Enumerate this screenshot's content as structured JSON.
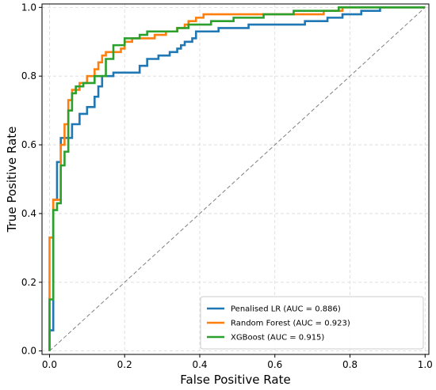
{
  "chart_data": {
    "type": "line",
    "xlabel": "False Positive Rate",
    "ylabel": "True Positive Rate",
    "xlim": [
      -0.02,
      1.01
    ],
    "ylim": [
      -0.01,
      1.01
    ],
    "x_ticks": [
      0.0,
      0.2,
      0.4,
      0.6,
      0.8,
      1.0
    ],
    "y_ticks": [
      0.0,
      0.2,
      0.4,
      0.6,
      0.8,
      1.0
    ],
    "grid": true,
    "legend_position": "bottom-right",
    "diagonal": {
      "color": "#808080",
      "points": [
        [
          0,
          0
        ],
        [
          1,
          1
        ]
      ]
    },
    "series": [
      {
        "name": "Penalised LR (AUC = 0.886)",
        "color": "#1f77b4",
        "points": [
          [
            0,
            0
          ],
          [
            0,
            0.06
          ],
          [
            0.01,
            0.06
          ],
          [
            0.01,
            0.44
          ],
          [
            0.02,
            0.44
          ],
          [
            0.02,
            0.55
          ],
          [
            0.03,
            0.55
          ],
          [
            0.03,
            0.62
          ],
          [
            0.06,
            0.62
          ],
          [
            0.06,
            0.66
          ],
          [
            0.08,
            0.66
          ],
          [
            0.08,
            0.69
          ],
          [
            0.1,
            0.69
          ],
          [
            0.1,
            0.71
          ],
          [
            0.12,
            0.71
          ],
          [
            0.12,
            0.74
          ],
          [
            0.13,
            0.74
          ],
          [
            0.13,
            0.77
          ],
          [
            0.14,
            0.77
          ],
          [
            0.14,
            0.8
          ],
          [
            0.17,
            0.8
          ],
          [
            0.17,
            0.81
          ],
          [
            0.24,
            0.81
          ],
          [
            0.24,
            0.83
          ],
          [
            0.26,
            0.83
          ],
          [
            0.26,
            0.85
          ],
          [
            0.29,
            0.85
          ],
          [
            0.29,
            0.86
          ],
          [
            0.32,
            0.86
          ],
          [
            0.32,
            0.87
          ],
          [
            0.34,
            0.87
          ],
          [
            0.34,
            0.88
          ],
          [
            0.35,
            0.88
          ],
          [
            0.35,
            0.89
          ],
          [
            0.36,
            0.89
          ],
          [
            0.36,
            0.9
          ],
          [
            0.38,
            0.9
          ],
          [
            0.38,
            0.91
          ],
          [
            0.39,
            0.91
          ],
          [
            0.39,
            0.93
          ],
          [
            0.45,
            0.93
          ],
          [
            0.45,
            0.94
          ],
          [
            0.53,
            0.94
          ],
          [
            0.53,
            0.95
          ],
          [
            0.68,
            0.95
          ],
          [
            0.68,
            0.96
          ],
          [
            0.74,
            0.96
          ],
          [
            0.74,
            0.97
          ],
          [
            0.78,
            0.97
          ],
          [
            0.78,
            0.98
          ],
          [
            0.83,
            0.98
          ],
          [
            0.83,
            0.99
          ],
          [
            0.88,
            0.99
          ],
          [
            0.88,
            1.0
          ],
          [
            1,
            1
          ]
        ]
      },
      {
        "name": "Random Forest (AUC = 0.923)",
        "color": "#ff7f0e",
        "points": [
          [
            0,
            0
          ],
          [
            0,
            0.33
          ],
          [
            0.01,
            0.33
          ],
          [
            0.01,
            0.44
          ],
          [
            0.03,
            0.44
          ],
          [
            0.03,
            0.6
          ],
          [
            0.04,
            0.6
          ],
          [
            0.04,
            0.66
          ],
          [
            0.05,
            0.66
          ],
          [
            0.05,
            0.73
          ],
          [
            0.06,
            0.73
          ],
          [
            0.06,
            0.76
          ],
          [
            0.08,
            0.76
          ],
          [
            0.08,
            0.78
          ],
          [
            0.1,
            0.78
          ],
          [
            0.1,
            0.8
          ],
          [
            0.12,
            0.8
          ],
          [
            0.12,
            0.82
          ],
          [
            0.13,
            0.82
          ],
          [
            0.13,
            0.84
          ],
          [
            0.14,
            0.84
          ],
          [
            0.14,
            0.86
          ],
          [
            0.15,
            0.86
          ],
          [
            0.15,
            0.87
          ],
          [
            0.19,
            0.87
          ],
          [
            0.19,
            0.88
          ],
          [
            0.2,
            0.88
          ],
          [
            0.2,
            0.9
          ],
          [
            0.22,
            0.9
          ],
          [
            0.22,
            0.91
          ],
          [
            0.28,
            0.91
          ],
          [
            0.28,
            0.92
          ],
          [
            0.31,
            0.92
          ],
          [
            0.31,
            0.93
          ],
          [
            0.34,
            0.93
          ],
          [
            0.34,
            0.94
          ],
          [
            0.36,
            0.94
          ],
          [
            0.36,
            0.95
          ],
          [
            0.37,
            0.95
          ],
          [
            0.37,
            0.96
          ],
          [
            0.39,
            0.96
          ],
          [
            0.39,
            0.97
          ],
          [
            0.41,
            0.97
          ],
          [
            0.41,
            0.98
          ],
          [
            0.73,
            0.98
          ],
          [
            0.73,
            0.99
          ],
          [
            0.78,
            0.99
          ],
          [
            0.78,
            1.0
          ],
          [
            1,
            1
          ]
        ]
      },
      {
        "name": "XGBoost (AUC = 0.915)",
        "color": "#2ca02c",
        "points": [
          [
            0,
            0
          ],
          [
            0,
            0.15
          ],
          [
            0.01,
            0.15
          ],
          [
            0.01,
            0.41
          ],
          [
            0.02,
            0.41
          ],
          [
            0.02,
            0.43
          ],
          [
            0.03,
            0.43
          ],
          [
            0.03,
            0.54
          ],
          [
            0.04,
            0.54
          ],
          [
            0.04,
            0.58
          ],
          [
            0.05,
            0.58
          ],
          [
            0.05,
            0.7
          ],
          [
            0.06,
            0.7
          ],
          [
            0.06,
            0.75
          ],
          [
            0.07,
            0.75
          ],
          [
            0.07,
            0.77
          ],
          [
            0.09,
            0.77
          ],
          [
            0.09,
            0.78
          ],
          [
            0.12,
            0.78
          ],
          [
            0.12,
            0.8
          ],
          [
            0.15,
            0.8
          ],
          [
            0.15,
            0.85
          ],
          [
            0.17,
            0.85
          ],
          [
            0.17,
            0.89
          ],
          [
            0.2,
            0.89
          ],
          [
            0.2,
            0.91
          ],
          [
            0.24,
            0.91
          ],
          [
            0.24,
            0.92
          ],
          [
            0.26,
            0.92
          ],
          [
            0.26,
            0.93
          ],
          [
            0.34,
            0.93
          ],
          [
            0.34,
            0.94
          ],
          [
            0.37,
            0.94
          ],
          [
            0.37,
            0.95
          ],
          [
            0.43,
            0.95
          ],
          [
            0.43,
            0.96
          ],
          [
            0.49,
            0.96
          ],
          [
            0.49,
            0.97
          ],
          [
            0.57,
            0.97
          ],
          [
            0.57,
            0.98
          ],
          [
            0.65,
            0.98
          ],
          [
            0.65,
            0.99
          ],
          [
            0.77,
            0.99
          ],
          [
            0.77,
            1.0
          ],
          [
            1,
            1
          ]
        ]
      }
    ]
  }
}
